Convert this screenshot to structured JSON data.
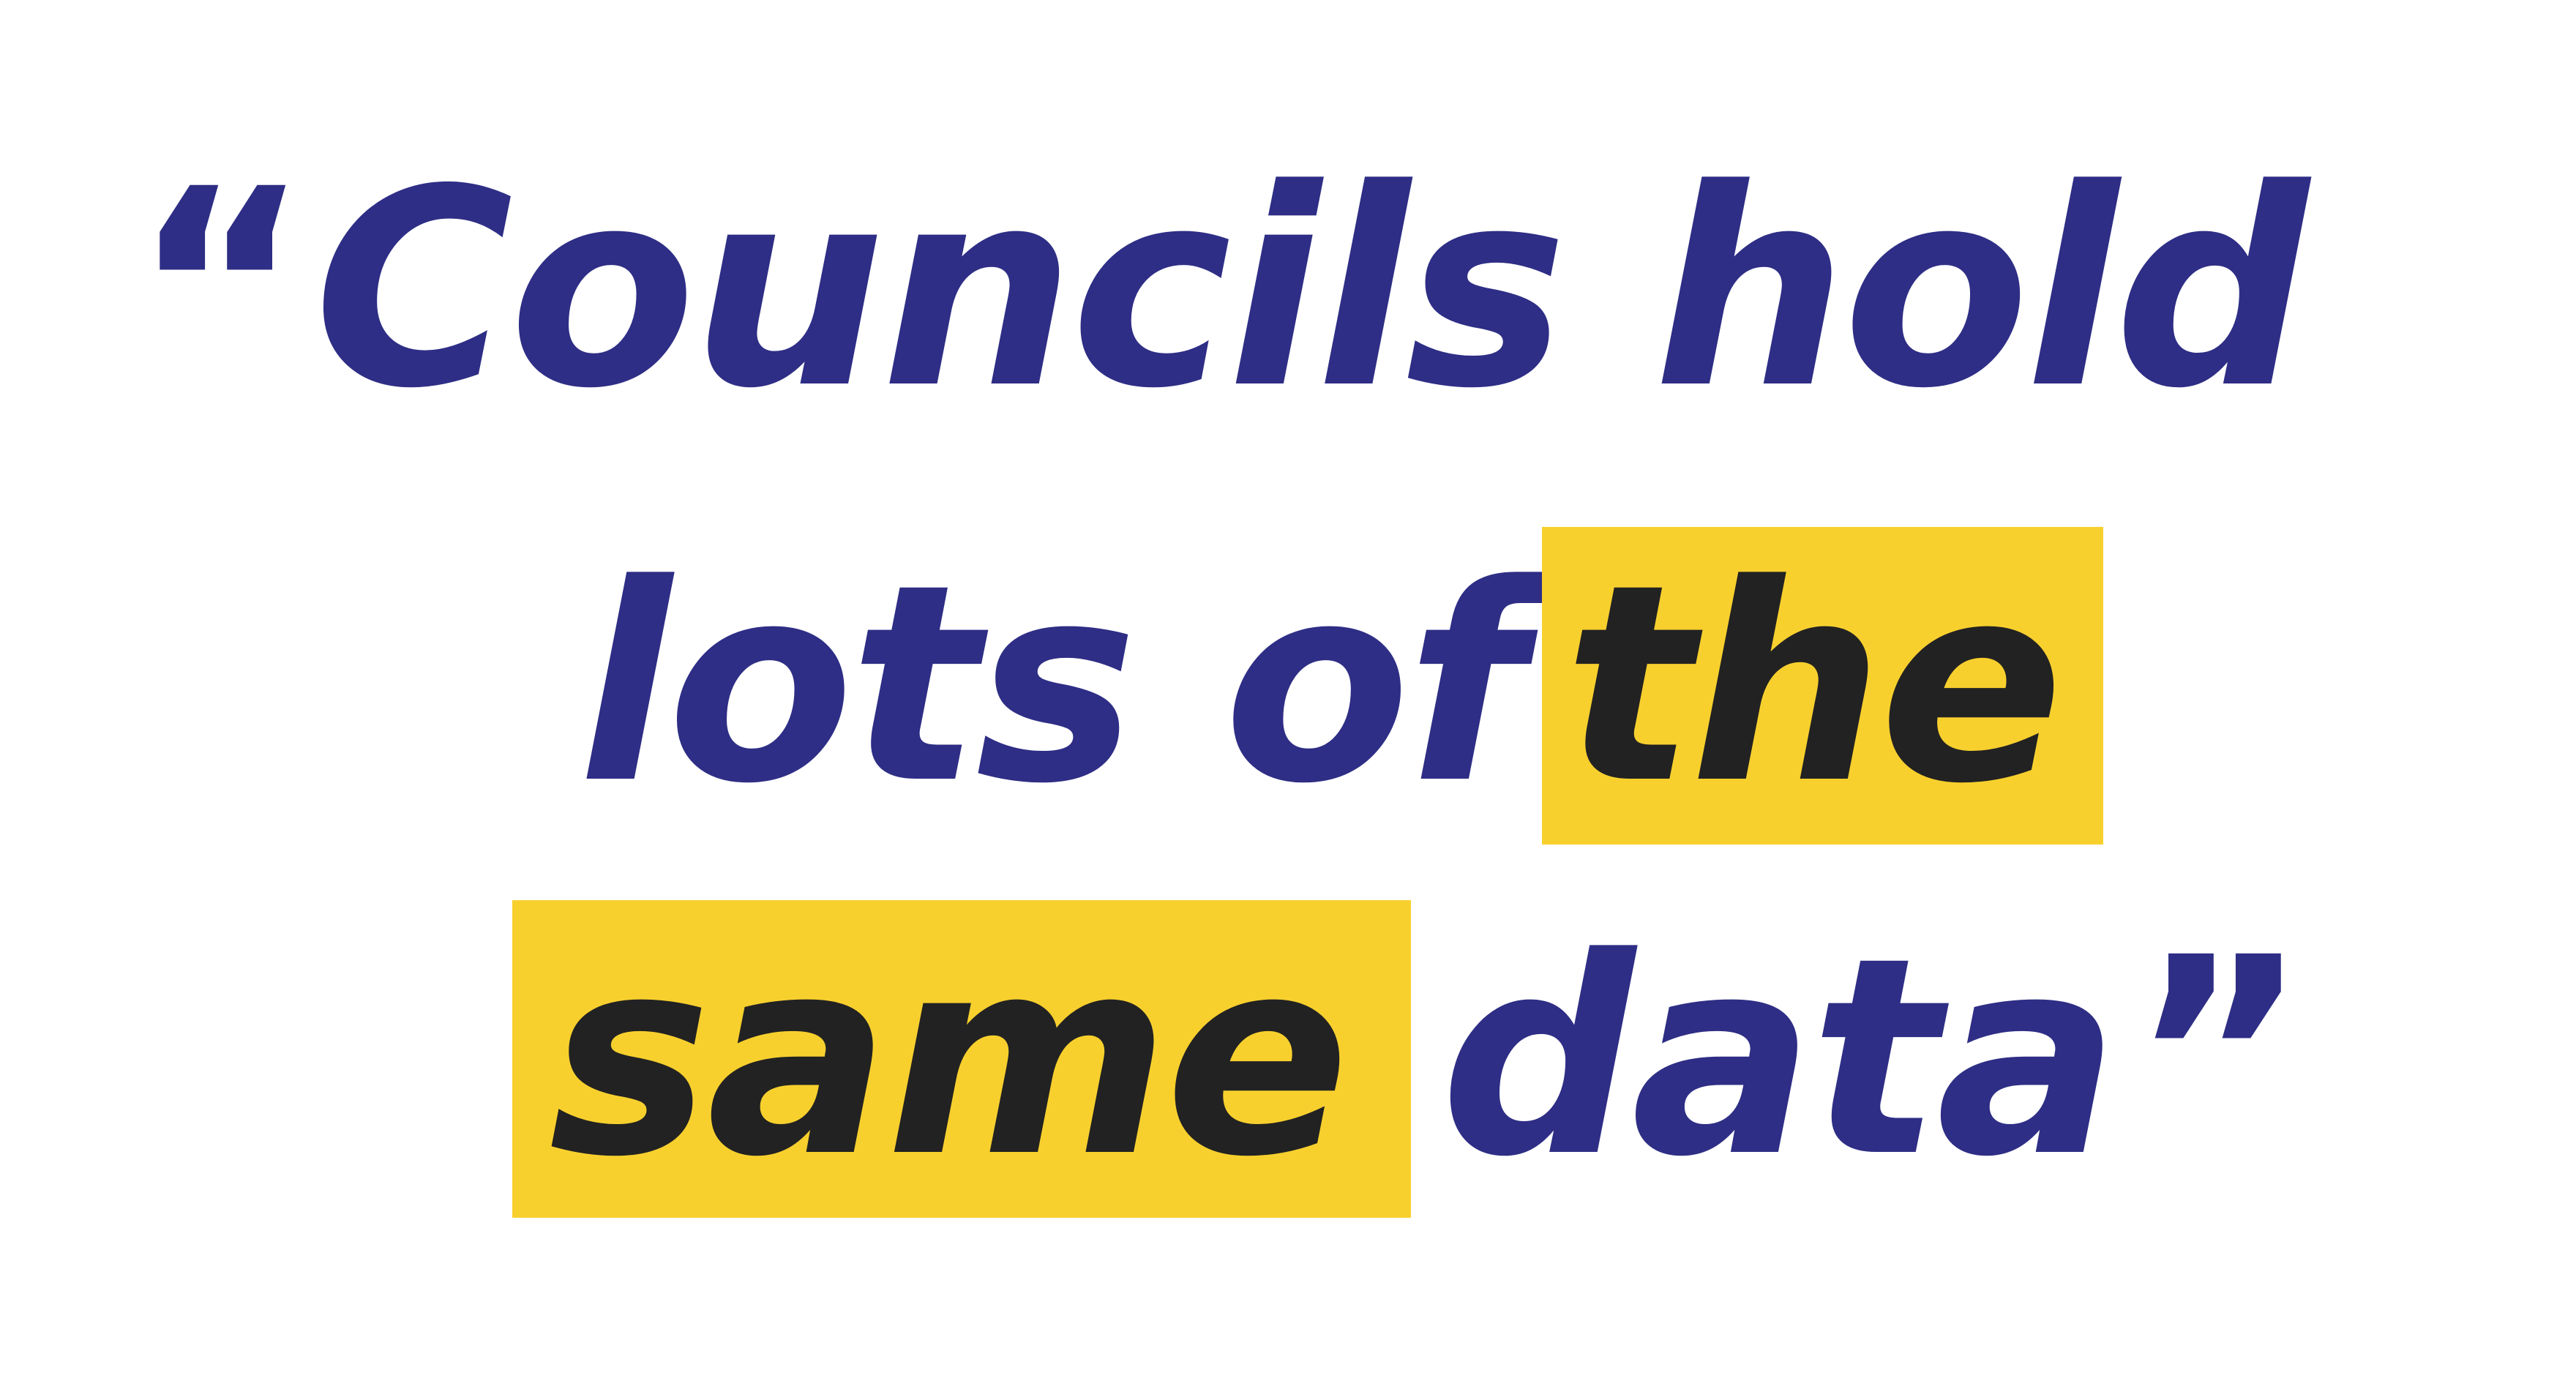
{
  "quote": {
    "open_mark": "“",
    "line1": "Councils hold",
    "line2_prefix": "lots of",
    "line2_highlight": "the",
    "line3_highlight": "same",
    "line3_suffix": "data",
    "close_mark": "”"
  },
  "colors": {
    "text": "#2e2e86",
    "highlight_bg": "#f8d02e",
    "highlight_text": "#222222",
    "background": "#ffffff"
  }
}
